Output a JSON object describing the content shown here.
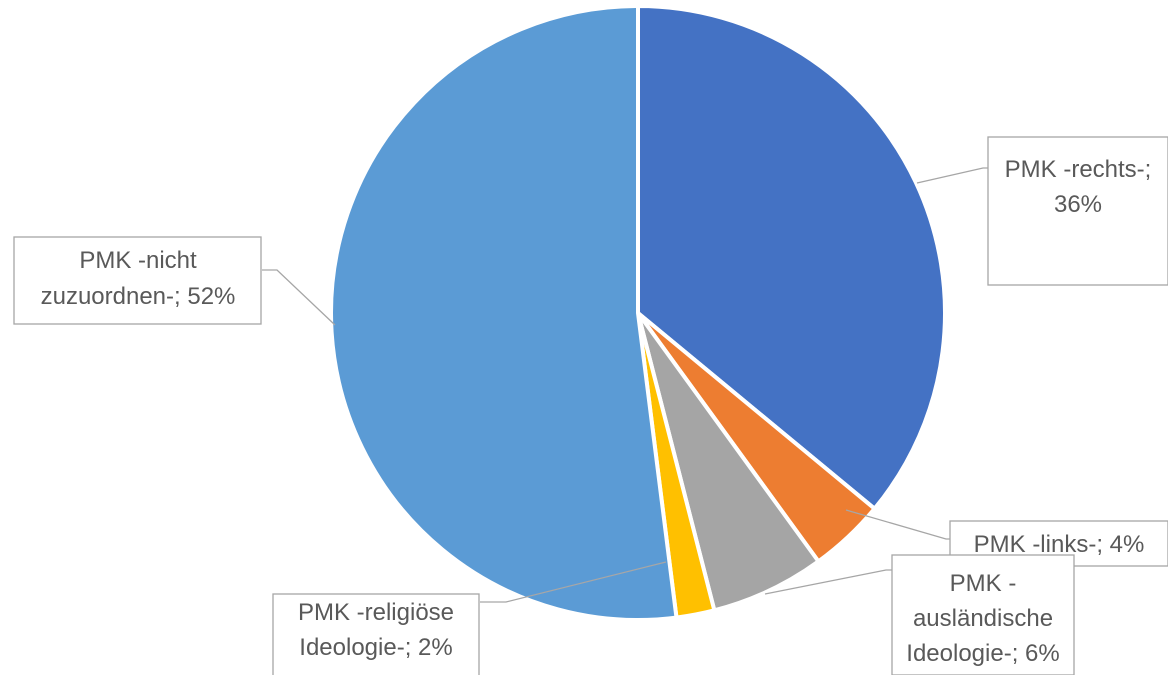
{
  "chart_data": {
    "type": "pie",
    "title": "",
    "start_angle_deg": 0,
    "direction": "clockwise",
    "slices": [
      {
        "name": "PMK -rechts-",
        "value": 36,
        "color": "#4472c4",
        "label_lines": [
          "PMK -rechts-;",
          "36%"
        ]
      },
      {
        "name": "PMK -links-",
        "value": 4,
        "color": "#ed7d31",
        "label_lines": [
          "PMK -links-; 4%"
        ]
      },
      {
        "name": "PMK -ausländische Ideologie-",
        "value": 6,
        "color": "#a5a5a5",
        "label_lines": [
          "PMK -",
          "ausländische",
          "Ideologie-; 6%"
        ]
      },
      {
        "name": "PMK -religiöse Ideologie-",
        "value": 2,
        "color": "#ffc000",
        "label_lines": [
          "PMK -religiöse",
          "Ideologie-; 2%"
        ]
      },
      {
        "name": "PMK -nicht zuzuordnen-",
        "value": 52,
        "color": "#5b9bd5",
        "label_lines": [
          "PMK -nicht",
          "zuzuordnen-; 52%"
        ]
      }
    ]
  }
}
